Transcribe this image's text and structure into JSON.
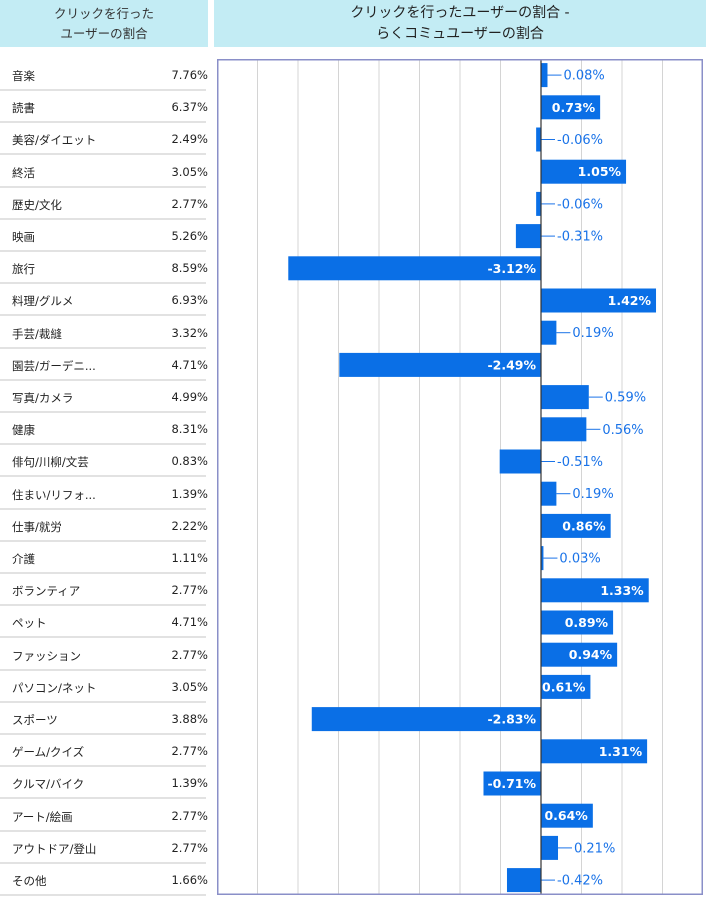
{
  "header": {
    "left_line1": "クリックを行った",
    "left_line2": "ユーザーの割合",
    "right_line1": "クリックを行ったユーザーの割合 -",
    "right_line2": "らくコミュユーザーの割合"
  },
  "colors": {
    "header_bg": "#c3ecf4",
    "bar": "#0a6fe6",
    "axis_border": "#8a8fc8",
    "grid": "#d4d4d4",
    "outside_label": "#1a73e8",
    "inside_label": "#ffffff"
  },
  "chart_data": {
    "type": "bar",
    "orientation": "horizontal",
    "grid": true,
    "xlim": [
      -4.0,
      2.0
    ],
    "categories": [
      "音楽",
      "読書",
      "美容/ダイエット",
      "終活",
      "歴史/文化",
      "映画",
      "旅行",
      "料理/グルメ",
      "手芸/裁縫",
      "園芸/ガーデニ...",
      "写真/カメラ",
      "健康",
      "俳句/川柳/文芸",
      "住まい/リフォ...",
      "仕事/就労",
      "介護",
      "ボランティア",
      "ペット",
      "ファッション",
      "パソコン/ネット",
      "スポーツ",
      "ゲーム/クイズ",
      "クルマ/バイク",
      "アート/絵画",
      "アウトドア/登山",
      "その他"
    ],
    "click_share": [
      "7.76%",
      "6.37%",
      "2.49%",
      "3.05%",
      "2.77%",
      "5.26%",
      "8.59%",
      "6.93%",
      "3.32%",
      "4.71%",
      "4.99%",
      "8.31%",
      "0.83%",
      "1.39%",
      "2.22%",
      "1.11%",
      "2.77%",
      "4.71%",
      "2.77%",
      "3.05%",
      "3.88%",
      "2.77%",
      "1.39%",
      "2.77%",
      "2.77%",
      "1.66%"
    ],
    "values": [
      0.08,
      0.73,
      -0.06,
      1.05,
      -0.06,
      -0.31,
      -3.12,
      1.42,
      0.19,
      -2.49,
      0.59,
      0.56,
      -0.51,
      0.19,
      0.86,
      0.03,
      1.33,
      0.89,
      0.94,
      0.61,
      -2.83,
      1.31,
      -0.71,
      0.64,
      0.21,
      -0.42
    ],
    "value_labels": [
      "0.08%",
      "0.73%",
      "-0.06%",
      "1.05%",
      "-0.06%",
      "-0.31%",
      "-3.12%",
      "1.42%",
      "0.19%",
      "-2.49%",
      "0.59%",
      "0.56%",
      "-0.51%",
      "0.19%",
      "0.86%",
      "0.03%",
      "1.33%",
      "0.89%",
      "0.94%",
      "0.61%",
      "-2.83%",
      "1.31%",
      "-0.71%",
      "0.64%",
      "0.21%",
      "-0.42%"
    ]
  }
}
